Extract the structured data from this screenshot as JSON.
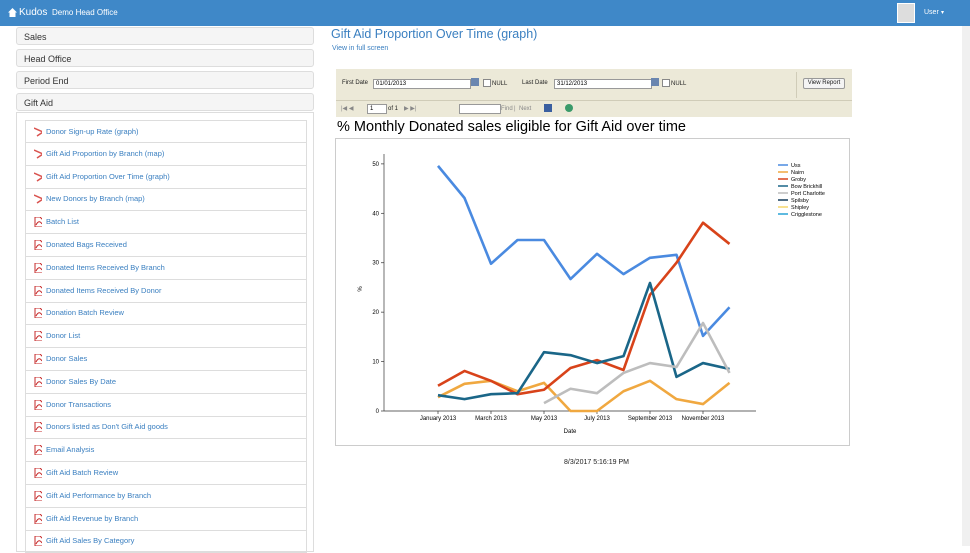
{
  "navbar": {
    "brand": "Kudos",
    "office": "Demo Head Office",
    "user": "User"
  },
  "sidebar": {
    "sections": [
      "Sales",
      "Head Office",
      "Period End",
      "Gift Aid"
    ],
    "items": [
      {
        "label": "Donor Sign-up Rate (graph)",
        "icon": "chart"
      },
      {
        "label": "Gift Aid Proportion by Branch (map)",
        "icon": "chart"
      },
      {
        "label": "Gift Aid Proportion Over Time (graph)",
        "icon": "chart"
      },
      {
        "label": "New Donors by Branch (map)",
        "icon": "chart"
      },
      {
        "label": "Batch List",
        "icon": "pdf"
      },
      {
        "label": "Donated Bags Received",
        "icon": "pdf"
      },
      {
        "label": "Donated Items Received By Branch",
        "icon": "pdf"
      },
      {
        "label": "Donated Items Received By Donor",
        "icon": "pdf"
      },
      {
        "label": "Donation Batch Review",
        "icon": "pdf"
      },
      {
        "label": "Donor List",
        "icon": "pdf"
      },
      {
        "label": "Donor Sales",
        "icon": "pdf"
      },
      {
        "label": "Donor Sales By Date",
        "icon": "pdf"
      },
      {
        "label": "Donor Transactions",
        "icon": "pdf"
      },
      {
        "label": "Donors listed as Don't Gift Aid goods",
        "icon": "pdf"
      },
      {
        "label": "Email Analysis",
        "icon": "pdf"
      },
      {
        "label": "Gift Aid Batch Review",
        "icon": "pdf"
      },
      {
        "label": "Gift Aid Performance by Branch",
        "icon": "pdf"
      },
      {
        "label": "Gift Aid Revenue by Branch",
        "icon": "pdf"
      },
      {
        "label": "Gift Aid Sales By Category",
        "icon": "pdf"
      }
    ]
  },
  "report": {
    "title": "Gift Aid Proportion Over Time (graph)",
    "fullscreen_link": "View in full screen",
    "first_date_label": "First Date",
    "first_date": "01/01/2013",
    "null_label": "NULL",
    "last_date_label": "Last Date",
    "last_date": "31/12/2013",
    "view_report": "View Report",
    "page": "1",
    "page_of": "of 1",
    "find": "Find",
    "next": "Next",
    "timestamp": "8/3/2017 5:16:19 PM"
  },
  "chart_data": {
    "type": "line",
    "title": "% Monthly Donated sales eligible for Gift Aid over time",
    "x_label": "Date",
    "y_label": "%",
    "categories": [
      "January 2013",
      null,
      "March 2013",
      null,
      "May 2013",
      null,
      "July 2013",
      null,
      "September 2013",
      null,
      "November 2013",
      null
    ],
    "ylim": [
      0,
      52
    ],
    "yticks": [
      0,
      10,
      20,
      30,
      40,
      50
    ],
    "series": [
      {
        "name": "Uss",
        "color": "#4a8ae0",
        "values": [
          49.6,
          43.1,
          29.8,
          34.6,
          34.6,
          26.7,
          31.8,
          27.7,
          31,
          31.6,
          15.2,
          21
        ]
      },
      {
        "name": "Nairn",
        "color": "#f0a840",
        "values": [
          2.8,
          5.5,
          6.1,
          4,
          5.7,
          0,
          0,
          4,
          6.1,
          2.4,
          1.4,
          5.7
        ]
      },
      {
        "name": "Groby",
        "color": "#d8431a",
        "values": [
          5.1,
          8.1,
          6.1,
          3.4,
          4.3,
          8.7,
          10.3,
          8.3,
          23.5,
          30,
          38.1,
          33.8
        ]
      },
      {
        "name": "Bow Brickhill",
        "color": "#1a6688",
        "values": [
          3.2,
          2.4,
          3.4,
          3.6,
          11.9,
          11.3,
          9.7,
          11.1,
          25.9,
          6.9,
          9.7,
          8.5
        ]
      },
      {
        "name": "Port Charlotte",
        "color": "#bdbdbd",
        "values": [
          null,
          null,
          null,
          null,
          1.6,
          4.5,
          3.6,
          7.7,
          9.7,
          8.9,
          17.8,
          7.7
        ]
      },
      {
        "name": "Spilsby",
        "color": "#123a5a",
        "values": [
          null,
          null,
          null,
          null,
          null,
          null,
          null,
          null,
          null,
          null,
          null,
          null
        ]
      },
      {
        "name": "Shipley",
        "color": "#f5d76e",
        "values": [
          null,
          null,
          null,
          null,
          null,
          null,
          null,
          null,
          null,
          null,
          null,
          null
        ]
      },
      {
        "name": "Crigglestone",
        "color": "#29a3d6",
        "values": [
          null,
          null,
          null,
          null,
          null,
          null,
          null,
          null,
          null,
          null,
          null,
          null
        ]
      }
    ]
  }
}
